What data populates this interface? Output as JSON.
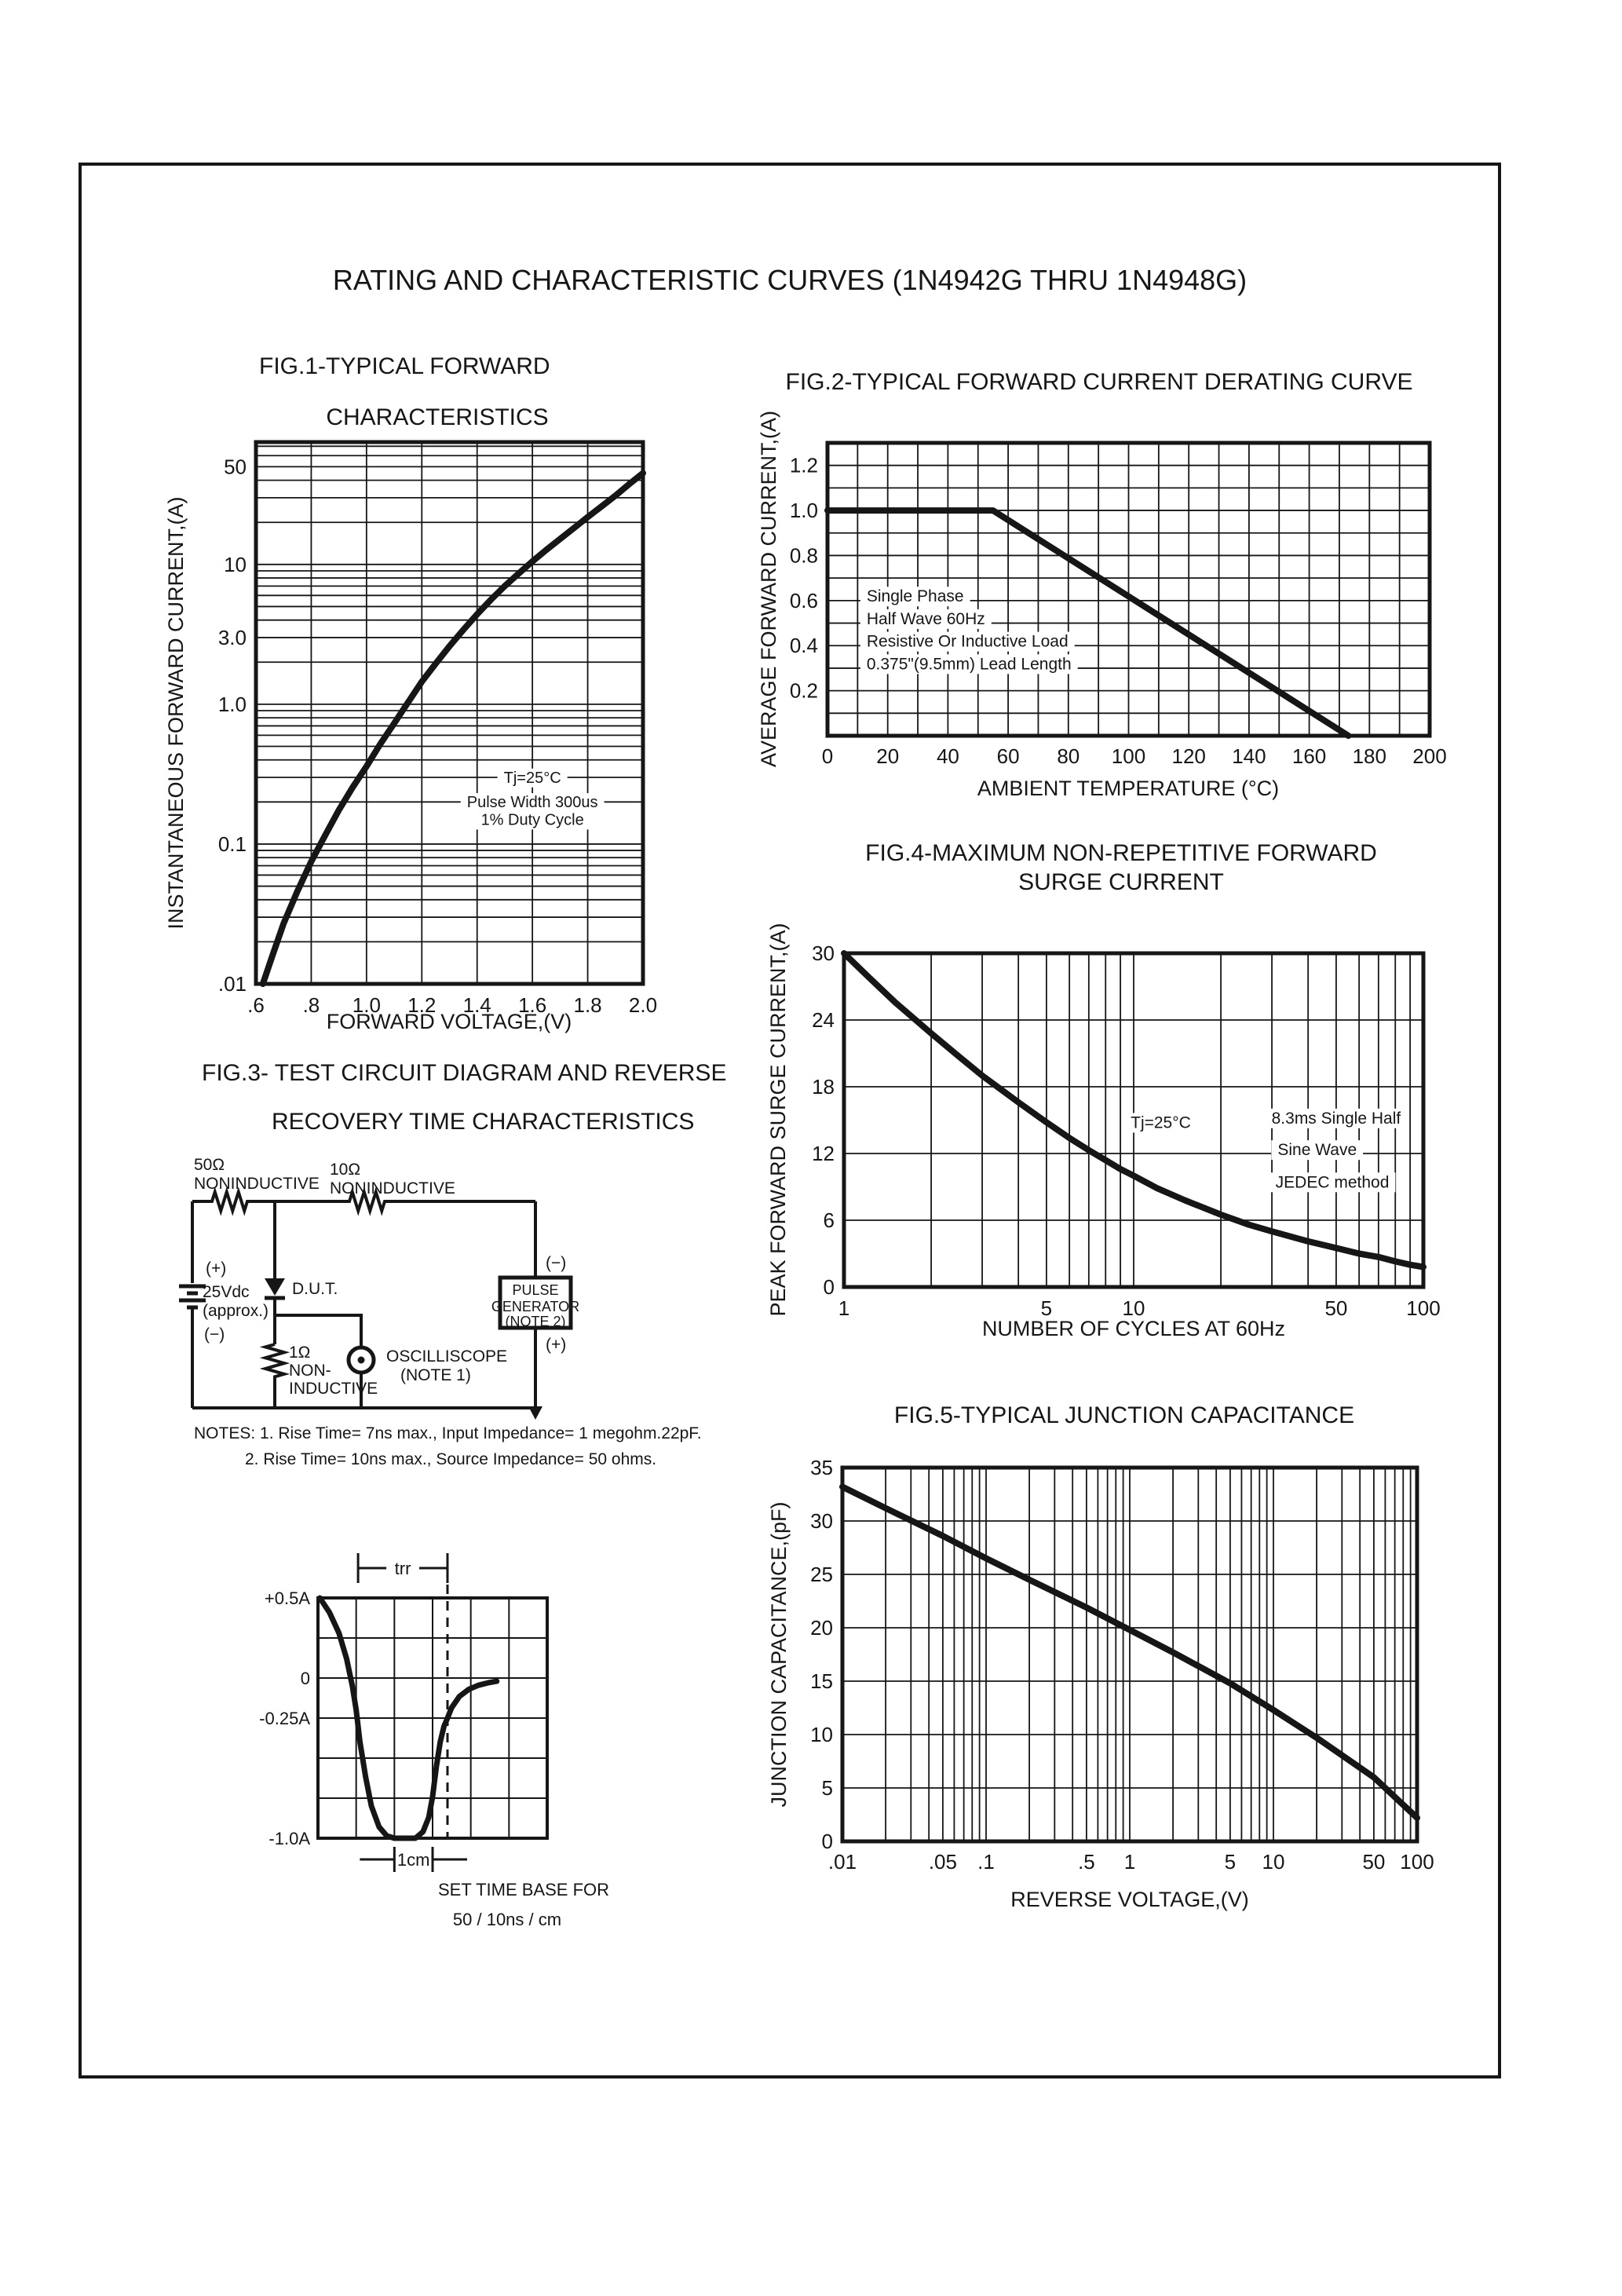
{
  "page": {
    "title": "RATING AND CHARACTERISTIC CURVES (1N4942G THRU 1N4948G)"
  },
  "fig3": {
    "caption_lines": [
      "FIG.3- TEST CIRCUIT DIAGRAM AND REVERSE",
      "RECOVERY TIME CHARACTERISTICS"
    ],
    "notes": [
      "NOTES: 1. Rise Time= 7ns max., Input Impedance= 1 megohm.22pF.",
      "2. Rise Time= 10ns max., Source Impedance= 50 ohms."
    ],
    "circuit": {
      "r1_value": "50Ω",
      "r1_type": "NONINDUCTIVE",
      "r2_value": "10Ω",
      "r2_type": "NONINDUCTIVE",
      "bat_plus": "(+)",
      "bat_v": "25Vdc",
      "bat_approx": "(approx.)",
      "bat_minus": "(−)",
      "dut": "D.U.T.",
      "r3_value": "1Ω",
      "r3_l1": "NON-",
      "r3_l2": "INDUCTIVE",
      "scope1": "OSCILLISCOPE",
      "scope2": "(NOTE 1)",
      "gen1": "PULSE",
      "gen2": "GENERATOR",
      "gen3": "(NOTE 2)",
      "gen_minus": "(−)",
      "gen_plus": "(+)"
    }
  },
  "chart_data": [
    {
      "id": "fig1",
      "type": "line",
      "title_lines": [
        "FIG.1-TYPICAL FORWARD",
        "CHARACTERISTICS"
      ],
      "xlabel": "FORWARD VOLTAGE,(V)",
      "ylabel": "INSTANTANEOUS FORWARD CURRENT,(A)",
      "x_axis": {
        "scale": "linear",
        "min": 0.6,
        "max": 2.0,
        "grid_step": 0.2
      },
      "y_axis": {
        "scale": "log",
        "min": 0.01,
        "max": 75
      },
      "x_ticks": [
        {
          "v": 0.6,
          "l": ".6"
        },
        {
          "v": 0.8,
          "l": ".8"
        },
        {
          "v": 1.0,
          "l": "1.0"
        },
        {
          "v": 1.2,
          "l": "1.2"
        },
        {
          "v": 1.4,
          "l": "1.4"
        },
        {
          "v": 1.6,
          "l": "1.6"
        },
        {
          "v": 1.8,
          "l": "1.8"
        },
        {
          "v": 2.0,
          "l": "2.0"
        }
      ],
      "y_ticks": [
        {
          "v": 50,
          "l": "50"
        },
        {
          "v": 10,
          "l": "10"
        },
        {
          "v": 3,
          "l": "3.0"
        },
        {
          "v": 1,
          "l": "1.0"
        },
        {
          "v": 0.1,
          "l": "0.1"
        },
        {
          "v": 0.01,
          "l": ".01"
        }
      ],
      "series": [
        {
          "name": "instantaneous-forward-current",
          "points": [
            [
              0.625,
              0.01
            ],
            [
              0.66,
              0.016
            ],
            [
              0.7,
              0.027
            ],
            [
              0.75,
              0.046
            ],
            [
              0.8,
              0.075
            ],
            [
              0.85,
              0.115
            ],
            [
              0.9,
              0.175
            ],
            [
              0.95,
              0.255
            ],
            [
              1.0,
              0.36
            ],
            [
              1.05,
              0.52
            ],
            [
              1.1,
              0.73
            ],
            [
              1.15,
              1.03
            ],
            [
              1.2,
              1.45
            ],
            [
              1.25,
              1.95
            ],
            [
              1.3,
              2.6
            ],
            [
              1.35,
              3.4
            ],
            [
              1.4,
              4.4
            ],
            [
              1.45,
              5.6
            ],
            [
              1.5,
              7.0
            ],
            [
              1.55,
              8.6
            ],
            [
              1.6,
              10.5
            ],
            [
              1.65,
              12.7
            ],
            [
              1.7,
              15.2
            ],
            [
              1.75,
              18.2
            ],
            [
              1.8,
              21.8
            ],
            [
              1.85,
              26.0
            ],
            [
              1.9,
              31.0
            ],
            [
              1.95,
              37.5
            ],
            [
              2.0,
              45.0
            ]
          ]
        }
      ],
      "annotations": [
        {
          "x": 1.6,
          "y": 0.3,
          "text": "Tj=25°C"
        },
        {
          "x": 1.6,
          "y": 0.2,
          "text": "Pulse Width 300us"
        },
        {
          "x": 1.6,
          "y": 0.15,
          "text": "1% Duty Cycle"
        }
      ]
    },
    {
      "id": "fig2",
      "type": "line",
      "title_lines": [
        "FIG.2-TYPICAL FORWARD CURRENT DERATING CURVE"
      ],
      "xlabel": "AMBIENT TEMPERATURE (°C)",
      "ylabel": "AVERAGE FORWARD CURRENT,(A)",
      "x_axis": {
        "scale": "linear",
        "min": 0,
        "max": 200,
        "grid_step": 10
      },
      "y_axis": {
        "scale": "linear",
        "min": 0,
        "max": 1.3,
        "grid_step": 0.1
      },
      "x_ticks": [
        {
          "v": 0,
          "l": "0"
        },
        {
          "v": 20,
          "l": "20"
        },
        {
          "v": 40,
          "l": "40"
        },
        {
          "v": 60,
          "l": "60"
        },
        {
          "v": 80,
          "l": "80"
        },
        {
          "v": 100,
          "l": "100"
        },
        {
          "v": 120,
          "l": "120"
        },
        {
          "v": 140,
          "l": "140"
        },
        {
          "v": 160,
          "l": "160"
        },
        {
          "v": 180,
          "l": "180"
        },
        {
          "v": 200,
          "l": "200"
        }
      ],
      "y_ticks": [
        {
          "v": 1.2,
          "l": "1.2"
        },
        {
          "v": 1.0,
          "l": "1.0"
        },
        {
          "v": 0.8,
          "l": "0.8"
        },
        {
          "v": 0.6,
          "l": "0.6"
        },
        {
          "v": 0.4,
          "l": "0.4"
        },
        {
          "v": 0.2,
          "l": "0.2"
        }
      ],
      "series": [
        {
          "name": "average-forward-current-derating",
          "points": [
            [
              0,
              1.0
            ],
            [
              55,
              1.0
            ],
            [
              173,
              0
            ]
          ]
        }
      ],
      "annotations": [
        {
          "x": 13,
          "y": 0.62,
          "text": "Single Phase",
          "a": "left"
        },
        {
          "x": 13,
          "y": 0.52,
          "text": "Half Wave 60Hz",
          "a": "left"
        },
        {
          "x": 13,
          "y": 0.42,
          "text": "Resistive Or Inductive Load",
          "a": "left"
        },
        {
          "x": 13,
          "y": 0.32,
          "text": "0.375\"(9.5mm) Lead Length",
          "a": "left"
        }
      ]
    },
    {
      "id": "fig4",
      "type": "line",
      "title_lines": [
        "FIG.4-MAXIMUM NON-REPETITIVE FORWARD",
        "SURGE CURRENT"
      ],
      "xlabel": "NUMBER OF CYCLES AT 60Hz",
      "ylabel": "PEAK FORWARD SURGE CURRENT,(A)",
      "x_axis": {
        "scale": "log",
        "min": 1,
        "max": 100
      },
      "y_axis": {
        "scale": "linear",
        "min": 0,
        "max": 30,
        "grid_step": 6
      },
      "x_ticks": [
        {
          "v": 1,
          "l": "1"
        },
        {
          "v": 5,
          "l": "5"
        },
        {
          "v": 10,
          "l": "10"
        },
        {
          "v": 50,
          "l": "50"
        },
        {
          "v": 100,
          "l": "100"
        }
      ],
      "y_ticks": [
        {
          "v": 30,
          "l": "30"
        },
        {
          "v": 24,
          "l": "24"
        },
        {
          "v": 18,
          "l": "18"
        },
        {
          "v": 12,
          "l": "12"
        },
        {
          "v": 6,
          "l": "6"
        },
        {
          "v": 0,
          "l": "0"
        }
      ],
      "series": [
        {
          "name": "peak-forward-surge-current",
          "points": [
            [
              1,
              30
            ],
            [
              1.2,
              28
            ],
            [
              1.5,
              25.6
            ],
            [
              2,
              22.8
            ],
            [
              2.5,
              20.7
            ],
            [
              3,
              19
            ],
            [
              4,
              16.6
            ],
            [
              5,
              14.8
            ],
            [
              6,
              13.4
            ],
            [
              7,
              12.3
            ],
            [
              8,
              11.4
            ],
            [
              9,
              10.6
            ],
            [
              10,
              10
            ],
            [
              12,
              8.9
            ],
            [
              15,
              7.8
            ],
            [
              20,
              6.5
            ],
            [
              25,
              5.6
            ],
            [
              30,
              5
            ],
            [
              40,
              4.1
            ],
            [
              50,
              3.5
            ],
            [
              60,
              3
            ],
            [
              70,
              2.7
            ],
            [
              80,
              2.3
            ],
            [
              90,
              2
            ],
            [
              100,
              1.8
            ]
          ]
        }
      ],
      "annotations": [
        {
          "x": 12.4,
          "y": 14.8,
          "text": "Tj=25°C"
        },
        {
          "x": 50,
          "y": 15.2,
          "text": "8.3ms Single Half"
        },
        {
          "x": 43,
          "y": 12.35,
          "text": "Sine Wave"
        },
        {
          "x": 48.5,
          "y": 9.45,
          "text": "JEDEC method"
        }
      ]
    },
    {
      "id": "fig5",
      "type": "line",
      "title_lines": [
        "FIG.5-TYPICAL JUNCTION CAPACITANCE"
      ],
      "xlabel": "REVERSE VOLTAGE,(V)",
      "ylabel": "JUNCTION CAPACITANCE,(pF)",
      "x_axis": {
        "scale": "log",
        "min": 0.01,
        "max": 100
      },
      "y_axis": {
        "scale": "linear",
        "min": 0,
        "max": 35,
        "grid_step": 5
      },
      "x_ticks": [
        {
          "v": 0.01,
          "l": ".01"
        },
        {
          "v": 0.05,
          "l": ".05"
        },
        {
          "v": 0.1,
          "l": ".1"
        },
        {
          "v": 0.5,
          "l": ".5"
        },
        {
          "v": 1,
          "l": "1"
        },
        {
          "v": 5,
          "l": "5"
        },
        {
          "v": 10,
          "l": "10"
        },
        {
          "v": 50,
          "l": "50"
        },
        {
          "v": 100,
          "l": "100"
        }
      ],
      "y_ticks": [
        {
          "v": 35,
          "l": "35"
        },
        {
          "v": 30,
          "l": "30"
        },
        {
          "v": 25,
          "l": "25"
        },
        {
          "v": 20,
          "l": "20"
        },
        {
          "v": 15,
          "l": "15"
        },
        {
          "v": 10,
          "l": "10"
        },
        {
          "v": 5,
          "l": "5"
        },
        {
          "v": 0,
          "l": "0"
        }
      ],
      "series": [
        {
          "name": "junction-capacitance",
          "points": [
            [
              0.01,
              33.2
            ],
            [
              0.02,
              31.2
            ],
            [
              0.05,
              28.6
            ],
            [
              0.1,
              26.5
            ],
            [
              0.2,
              24.5
            ],
            [
              0.5,
              21.9
            ],
            [
              1,
              19.8
            ],
            [
              2,
              17.7
            ],
            [
              5,
              14.8
            ],
            [
              10,
              12.3
            ],
            [
              20,
              9.7
            ],
            [
              50,
              6
            ],
            [
              100,
              2.2
            ]
          ]
        }
      ],
      "annotations": []
    },
    {
      "id": "fig3_waveform",
      "type": "line",
      "title_lines": [],
      "xlabel": "",
      "ylabel": "",
      "x_axis": {
        "scale": "linear",
        "min": 0,
        "max": 6,
        "grid_step": 1,
        "unit": "cm (scope divisions)"
      },
      "y_axis": {
        "scale": "linear",
        "min": -1.0,
        "max": 0.5,
        "grid_step": 0.25
      },
      "y_ticks": [
        {
          "v": 0.5,
          "l": "+0.5A"
        },
        {
          "v": 0,
          "l": "0"
        },
        {
          "v": -0.25,
          "l": "-0.25A"
        },
        {
          "v": -1.0,
          "l": "-1.0A"
        }
      ],
      "series": [
        {
          "name": "reverse-recovery-current",
          "points": [
            [
              0.05,
              0.5
            ],
            [
              0.3,
              0.41
            ],
            [
              0.55,
              0.28
            ],
            [
              0.75,
              0.12
            ],
            [
              0.9,
              -0.05
            ],
            [
              1.0,
              -0.2
            ],
            [
              1.1,
              -0.4
            ],
            [
              1.25,
              -0.62
            ],
            [
              1.4,
              -0.8
            ],
            [
              1.6,
              -0.93
            ],
            [
              1.8,
              -0.985
            ],
            [
              2.0,
              -1.0
            ],
            [
              2.55,
              -1.0
            ],
            [
              2.75,
              -0.96
            ],
            [
              2.9,
              -0.87
            ],
            [
              3.0,
              -0.74
            ],
            [
              3.1,
              -0.55
            ],
            [
              3.2,
              -0.4
            ],
            [
              3.3,
              -0.3
            ],
            [
              3.39,
              -0.25
            ],
            [
              3.5,
              -0.185
            ],
            [
              3.7,
              -0.115
            ],
            [
              3.95,
              -0.07
            ],
            [
              4.2,
              -0.045
            ],
            [
              4.45,
              -0.03
            ],
            [
              4.68,
              -0.02
            ]
          ]
        }
      ],
      "trr_label": "trr",
      "trr_span": [
        1.05,
        3.39
      ],
      "dashed_x": 3.39,
      "dim_label": "1cm",
      "dim_span": [
        2,
        3
      ],
      "footer_lines": [
        "SET TIME BASE FOR",
        "50 / 10ns / cm"
      ]
    }
  ]
}
